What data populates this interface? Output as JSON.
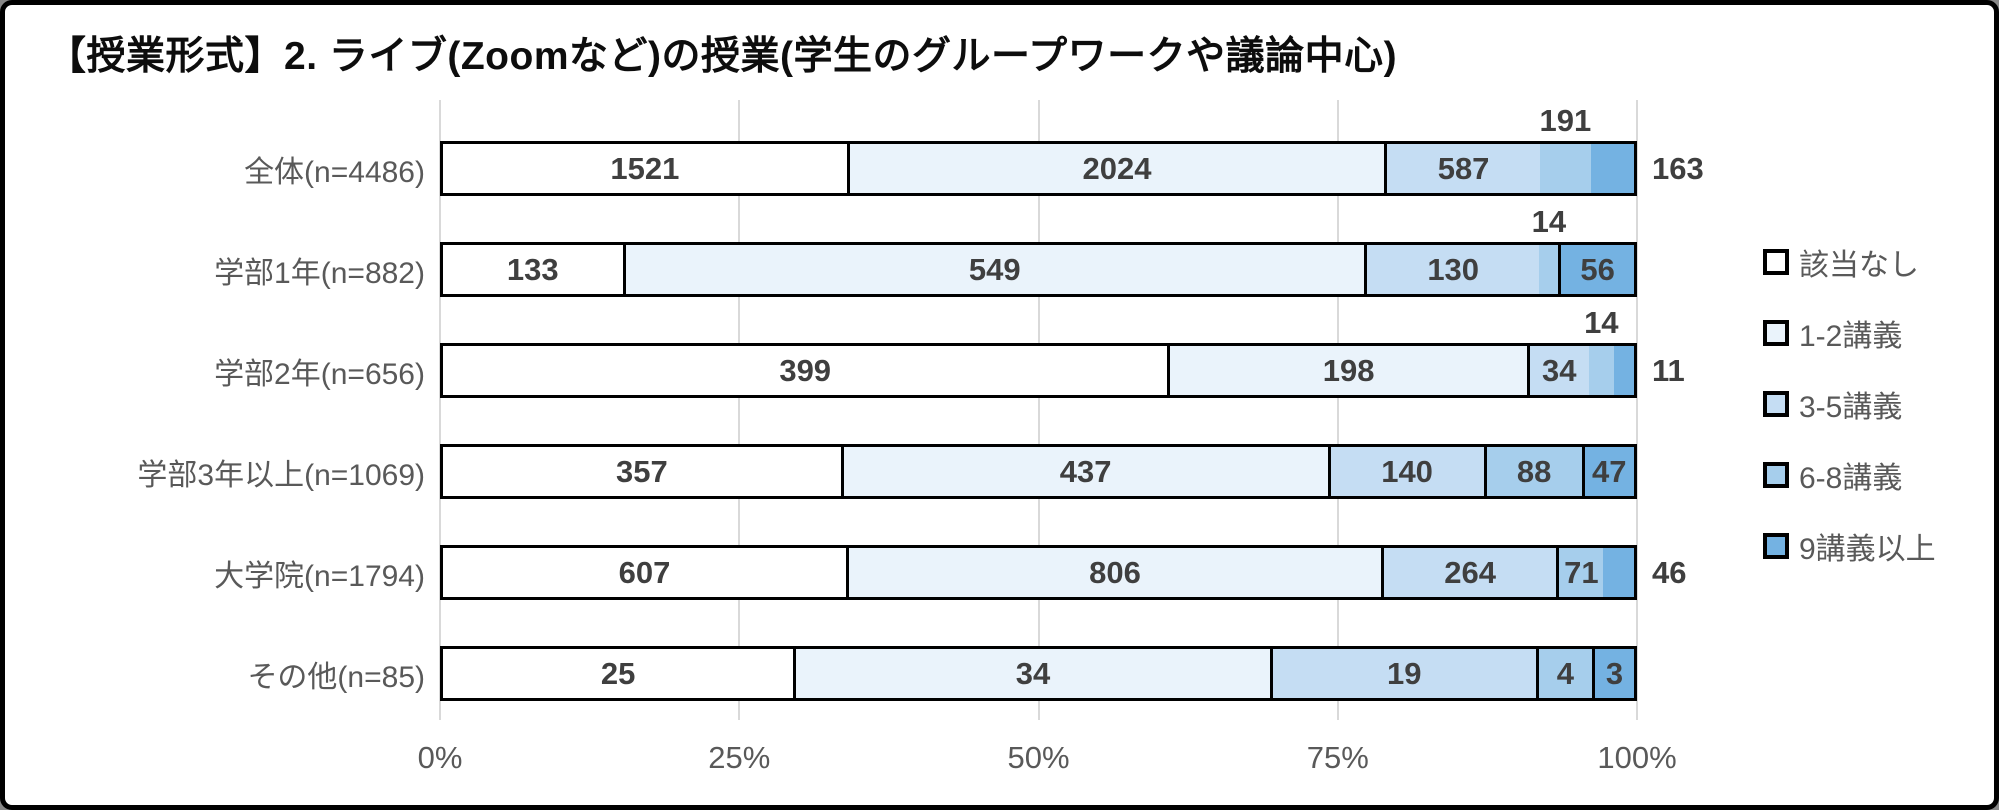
{
  "title": "【授業形式】2. ライブ(Zoomなど)の授業(学生のグループワークや議論中心)",
  "colors": {
    "grid": "#d9d9d9",
    "segment_border": "#000000",
    "data_label": "#3f3f3f",
    "axis_text": "#595959"
  },
  "chart_data": {
    "type": "bar",
    "subtype": "stacked-100-percent",
    "orientation": "horizontal",
    "title": "【授業形式】2. ライブ(Zoomなど)の授業(学生のグループワークや議論中心)",
    "categories": [
      "全体(n=4486)",
      "学部1年(n=882)",
      "学部2年(n=656)",
      "学部3年以上(n=1069)",
      "大学院(n=1794)",
      "その他(n=85)"
    ],
    "category_totals": [
      4486,
      882,
      656,
      1069,
      1794,
      85
    ],
    "series": [
      {
        "name": "該当なし",
        "color": "#ffffff",
        "values": [
          1521,
          133,
          399,
          357,
          607,
          25
        ]
      },
      {
        "name": "1-2講義",
        "color": "#eaf3fb",
        "values": [
          2024,
          549,
          198,
          437,
          806,
          34
        ]
      },
      {
        "name": "3-5講義",
        "color": "#c5ddf3",
        "values": [
          587,
          130,
          34,
          140,
          264,
          19
        ]
      },
      {
        "name": "6-8講義",
        "color": "#a6ceec",
        "values": [
          191,
          14,
          14,
          88,
          71,
          4
        ]
      },
      {
        "name": "9講義以上",
        "color": "#74b2e2",
        "values": [
          163,
          56,
          11,
          47,
          46,
          3
        ]
      }
    ],
    "label_placement": [
      [
        "inside",
        "inside",
        "inside",
        "above",
        "right"
      ],
      [
        "inside",
        "inside",
        "inside",
        "above",
        "inside"
      ],
      [
        "inside",
        "inside",
        "inside",
        "above",
        "right"
      ],
      [
        "inside",
        "inside",
        "inside",
        "inside",
        "inside"
      ],
      [
        "inside",
        "inside",
        "inside",
        "inside",
        "right"
      ],
      [
        "inside",
        "inside",
        "inside",
        "inside",
        "inside"
      ]
    ],
    "x_ticks": [
      "0%",
      "25%",
      "50%",
      "75%",
      "100%"
    ],
    "xlim": [
      0,
      100
    ],
    "grid": true,
    "legend_position": "right"
  }
}
